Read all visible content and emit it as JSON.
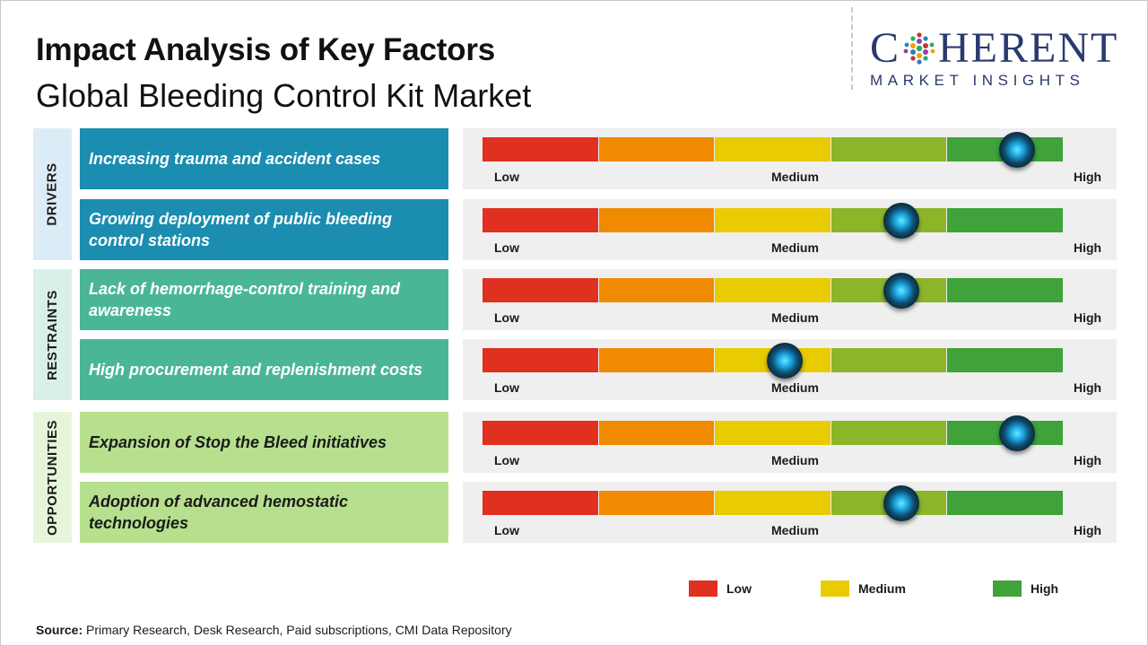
{
  "title": "Impact Analysis of Key Factors",
  "subtitle": "Global Bleeding Control Kit Market",
  "logo": {
    "top": "C",
    "top_rest": "HERENT",
    "bottom": "MARKET INSIGHTS"
  },
  "categories": [
    {
      "label": "DRIVERS",
      "bg": "#dcecf6",
      "rows": [
        0,
        1
      ]
    },
    {
      "label": "RESTRAINTS",
      "bg": "#d9f0ea",
      "rows": [
        2,
        3
      ]
    },
    {
      "label": "OPPORTUNITIES",
      "bg": "#e6f5d9",
      "rows": [
        4,
        5
      ]
    }
  ],
  "scale": {
    "low_label": "Low",
    "medium_label": "Medium",
    "high_label": "High",
    "segment_colors": [
      "#e03020",
      "#f08a00",
      "#e8cb00",
      "#8cb52a",
      "#3fa23a"
    ]
  },
  "chart_data": {
    "type": "table",
    "scale_min": 0,
    "scale_max": 5,
    "rows": [
      {
        "category": "DRIVERS",
        "factor": "Increasing trauma and accident cases",
        "impact": 4.6,
        "box_color": "#1a8db0",
        "text_color": "#ffffff"
      },
      {
        "category": "DRIVERS",
        "factor": "Growing deployment of public bleeding control stations",
        "impact": 3.6,
        "box_color": "#1a8db0",
        "text_color": "#ffffff"
      },
      {
        "category": "RESTRAINTS",
        "factor": "Lack of hemorrhage-control training and awareness",
        "impact": 3.6,
        "box_color": "#4bb697",
        "text_color": "#ffffff"
      },
      {
        "category": "RESTRAINTS",
        "factor": "High procurement and replenishment costs",
        "impact": 2.6,
        "box_color": "#4bb697",
        "text_color": "#ffffff"
      },
      {
        "category": "OPPORTUNITIES",
        "factor": "Expansion of Stop the Bleed initiatives",
        "impact": 4.6,
        "box_color": "#b6e08d",
        "text_color": "#1b1b1b"
      },
      {
        "category": "OPPORTUNITIES",
        "factor": "Adoption of advanced hemostatic technologies",
        "impact": 3.6,
        "box_color": "#b6e08d",
        "text_color": "#1b1b1b"
      }
    ]
  },
  "legend": [
    {
      "label": "Low",
      "color": "#e03020"
    },
    {
      "label": "Medium",
      "color": "#e8cb00"
    },
    {
      "label": "High",
      "color": "#3fa23a"
    }
  ],
  "source": {
    "label": "Source:",
    "text": "Primary Research, Desk Research, Paid subscriptions, CMI Data Repository"
  }
}
